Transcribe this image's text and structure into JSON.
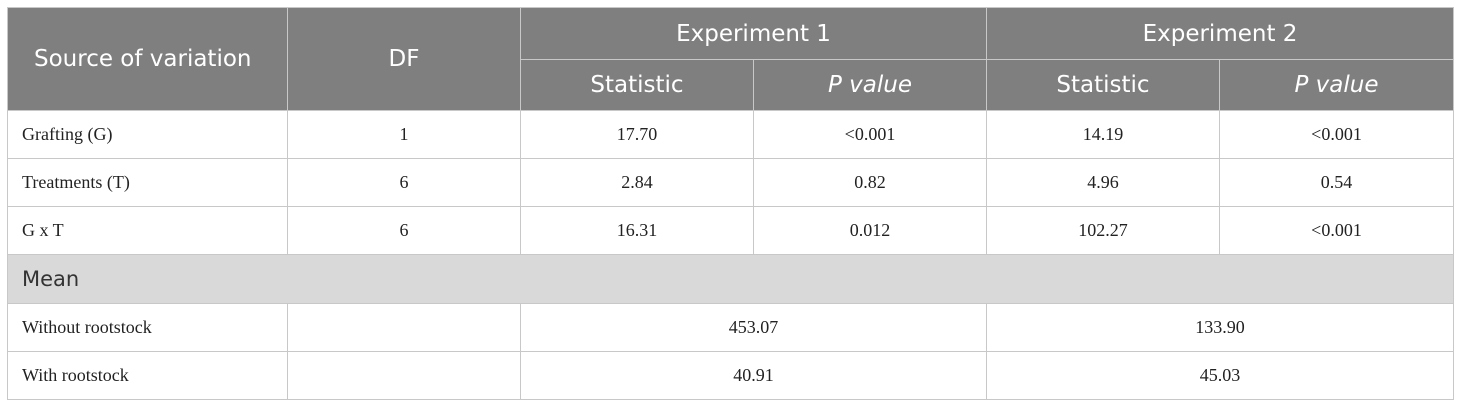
{
  "table": {
    "header": {
      "source": "Source of variation",
      "df": "DF",
      "exp1": "Experiment 1",
      "exp2": "Experiment 2",
      "statistic": "Statistic",
      "pvalue": "P value"
    },
    "rows": [
      {
        "label": "Grafting (G)",
        "df": "1",
        "e1_stat": "17.70",
        "e1_p": "<0.001",
        "e2_stat": "14.19",
        "e2_p": "<0.001"
      },
      {
        "label": "Treatments (T)",
        "df": "6",
        "e1_stat": "2.84",
        "e1_p": "0.82",
        "e2_stat": "4.96",
        "e2_p": "0.54"
      },
      {
        "label": "G x T",
        "df": "6",
        "e1_stat": "16.31",
        "e1_p": "0.012",
        "e2_stat": "102.27",
        "e2_p": "<0.001"
      }
    ],
    "section_label": "Mean",
    "mean_rows": [
      {
        "label": "Without rootstock",
        "e1": "453.07",
        "e2": "133.90"
      },
      {
        "label": "With rootstock",
        "e1": "40.91",
        "e2": "45.03"
      }
    ]
  },
  "colors": {
    "header_bg": "#7f7f7f",
    "section_bg": "#d9d9d9",
    "border": "#c8c8c8"
  }
}
